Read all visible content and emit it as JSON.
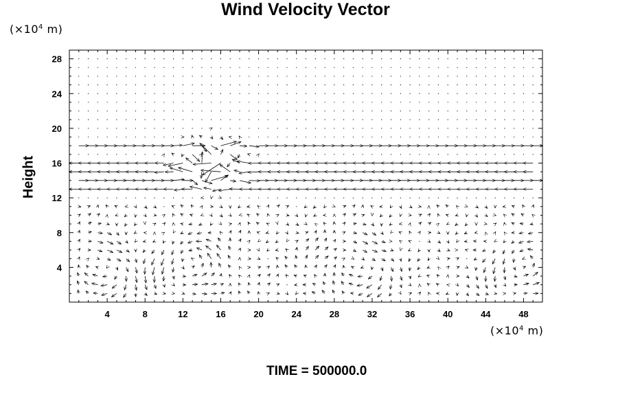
{
  "chart_data": {
    "type": "vector-field",
    "title": "Wind Velocity Vector",
    "ylabel": "Height",
    "y_unit": "(×10⁴ m)",
    "x_unit": "(×10⁴ m)",
    "footer": "TIME = 500000.0",
    "xlim": [
      0,
      50
    ],
    "ylim": [
      0,
      29
    ],
    "x_ticks": [
      4,
      8,
      12,
      16,
      20,
      24,
      28,
      32,
      36,
      40,
      44,
      48
    ],
    "y_ticks": [
      4,
      8,
      12,
      16,
      20,
      24,
      28
    ],
    "grid": false,
    "arrow_color": "#000000",
    "features": {
      "jet_levels": [
        13,
        14,
        15,
        16,
        18
      ],
      "jet_directions": [
        "west",
        "east",
        "west",
        "west",
        "east"
      ],
      "lower_cells_centers_x": [
        3,
        13,
        30,
        48
      ],
      "lower_cell_height": 10,
      "disturbance_center": [
        15,
        16
      ]
    }
  }
}
